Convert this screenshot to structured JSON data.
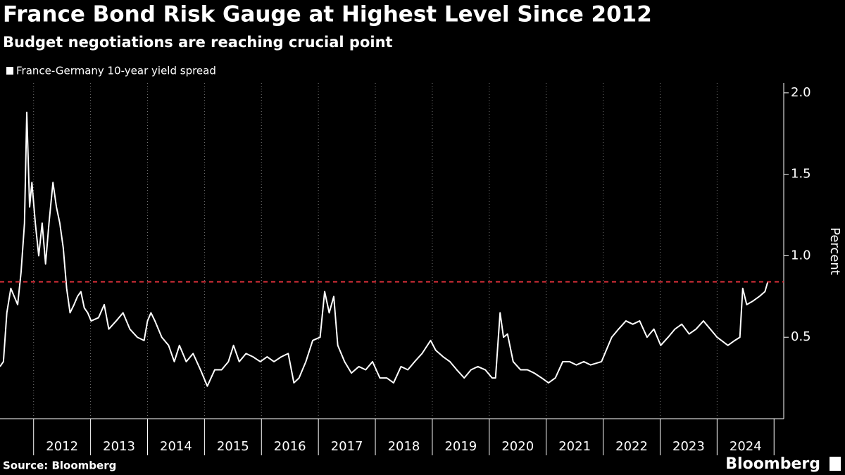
{
  "chart_data": {
    "type": "line",
    "title": "France Bond Risk Gauge at Highest Level Since 2012",
    "subtitle": "Budget negotiations are reaching crucial point",
    "y_label": "Percent",
    "source": "Source: Bloomberg",
    "brand": "Bloomberg",
    "xlim": [
      2011.41,
      2025.17
    ],
    "xticks": [
      {
        "value": 2012,
        "label": "2012"
      },
      {
        "value": 2013,
        "label": "2013"
      },
      {
        "value": 2014,
        "label": "2014"
      },
      {
        "value": 2015,
        "label": "2015"
      },
      {
        "value": 2016,
        "label": "2016"
      },
      {
        "value": 2017,
        "label": "2017"
      },
      {
        "value": 2018,
        "label": "2018"
      },
      {
        "value": 2019,
        "label": "2019"
      },
      {
        "value": 2020,
        "label": "2020"
      },
      {
        "value": 2021,
        "label": "2021"
      },
      {
        "value": 2022,
        "label": "2022"
      },
      {
        "value": 2023,
        "label": "2023"
      },
      {
        "value": 2024,
        "label": "2024"
      }
    ],
    "ylim": [
      0,
      2.06
    ],
    "yticks": [
      0.5,
      {
        "value": 1,
        "label": "1.0"
      },
      1.5,
      {
        "value": 2,
        "label": "2.0"
      }
    ],
    "reference_line": {
      "value": 0.84,
      "color": "#e0303a"
    },
    "x": [
      2011.41,
      2011.47,
      2011.53,
      2011.6,
      2011.66,
      2011.72,
      2011.78,
      2011.84,
      2011.88,
      2011.93,
      2011.97,
      2012.03,
      2012.09,
      2012.15,
      2012.21,
      2012.27,
      2012.34,
      2012.4,
      2012.46,
      2012.52,
      2012.58,
      2012.64,
      2012.71,
      2012.77,
      2012.83,
      2012.89,
      2012.95,
      2013.01,
      2013.14,
      2013.24,
      2013.32,
      2013.45,
      2013.57,
      2013.69,
      2013.82,
      2013.94,
      2014.0,
      2014.06,
      2014.13,
      2014.25,
      2014.37,
      2014.47,
      2014.56,
      2014.68,
      2014.8,
      2014.93,
      2015.05,
      2015.18,
      2015.3,
      2015.42,
      2015.51,
      2015.61,
      2015.73,
      2015.85,
      2015.98,
      2016.1,
      2016.22,
      2016.35,
      2016.47,
      2016.57,
      2016.66,
      2016.78,
      2016.9,
      2017.03,
      2017.11,
      2017.19,
      2017.27,
      2017.34,
      2017.46,
      2017.58,
      2017.71,
      2017.83,
      2017.95,
      2018.08,
      2018.2,
      2018.32,
      2018.45,
      2018.57,
      2018.69,
      2018.82,
      2018.97,
      2019.06,
      2019.19,
      2019.31,
      2019.43,
      2019.56,
      2019.68,
      2019.8,
      2019.93,
      2020.05,
      2020.11,
      2020.19,
      2020.25,
      2020.32,
      2020.42,
      2020.55,
      2020.67,
      2020.79,
      2020.92,
      2021.04,
      2021.16,
      2021.29,
      2021.41,
      2021.53,
      2021.66,
      2021.78,
      2021.97,
      2022.03,
      2022.15,
      2022.27,
      2022.4,
      2022.52,
      2022.64,
      2022.77,
      2022.89,
      2023.01,
      2023.14,
      2023.26,
      2023.38,
      2023.51,
      2023.63,
      2023.76,
      2023.88,
      2024.0,
      2024.19,
      2024.31,
      2024.4,
      2024.45,
      2024.52,
      2024.62,
      2024.74,
      2024.84,
      2024.89
    ],
    "series": [
      {
        "name": "France-Germany 10-year yield spread",
        "color": "#ffffff",
        "values": [
          0.32,
          0.35,
          0.65,
          0.8,
          0.75,
          0.7,
          0.9,
          1.2,
          1.88,
          1.3,
          1.45,
          1.2,
          1.0,
          1.2,
          0.95,
          1.2,
          1.45,
          1.3,
          1.2,
          1.05,
          0.8,
          0.65,
          0.7,
          0.75,
          0.78,
          0.68,
          0.65,
          0.6,
          0.62,
          0.7,
          0.55,
          0.6,
          0.65,
          0.55,
          0.5,
          0.48,
          0.6,
          0.65,
          0.6,
          0.5,
          0.45,
          0.35,
          0.45,
          0.35,
          0.4,
          0.3,
          0.2,
          0.3,
          0.3,
          0.35,
          0.45,
          0.35,
          0.4,
          0.38,
          0.35,
          0.38,
          0.35,
          0.38,
          0.4,
          0.22,
          0.25,
          0.35,
          0.48,
          0.5,
          0.78,
          0.65,
          0.75,
          0.45,
          0.35,
          0.28,
          0.32,
          0.3,
          0.35,
          0.25,
          0.25,
          0.22,
          0.32,
          0.3,
          0.35,
          0.4,
          0.48,
          0.42,
          0.38,
          0.35,
          0.3,
          0.25,
          0.3,
          0.32,
          0.3,
          0.25,
          0.25,
          0.65,
          0.5,
          0.52,
          0.35,
          0.3,
          0.3,
          0.28,
          0.25,
          0.22,
          0.25,
          0.35,
          0.35,
          0.33,
          0.35,
          0.33,
          0.35,
          0.4,
          0.5,
          0.55,
          0.6,
          0.58,
          0.6,
          0.5,
          0.55,
          0.45,
          0.5,
          0.55,
          0.58,
          0.52,
          0.55,
          0.6,
          0.55,
          0.5,
          0.45,
          0.48,
          0.5,
          0.8,
          0.7,
          0.72,
          0.75,
          0.78,
          0.84
        ]
      }
    ]
  }
}
